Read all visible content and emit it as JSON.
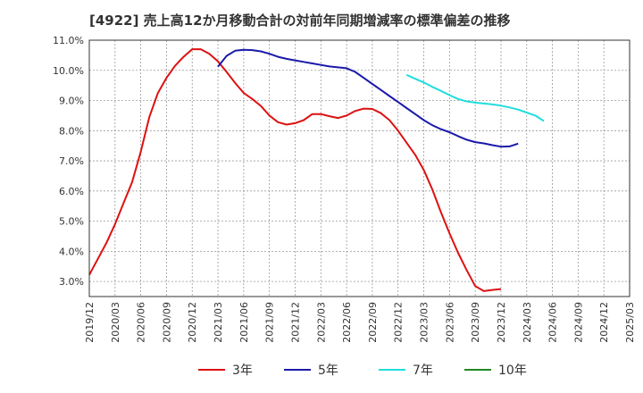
{
  "title": "[4922]  売上高12か月移動合計の対前年同期増減率の標準偏差の推移",
  "chart_data": {
    "type": "line",
    "title": "[4922]  売上高12か月移動合計の対前年同期増減率の標準偏差の推移",
    "xlabel": "",
    "ylabel": "",
    "x_ticks": [
      "2019/12",
      "2020/03",
      "2020/06",
      "2020/09",
      "2020/12",
      "2021/03",
      "2021/06",
      "2021/09",
      "2021/12",
      "2022/03",
      "2022/06",
      "2022/09",
      "2022/12",
      "2023/03",
      "2023/06",
      "2023/09",
      "2023/12",
      "2024/03",
      "2024/06",
      "2024/09",
      "2024/12",
      "2025/03"
    ],
    "y_ticks": [
      "3.0%",
      "4.0%",
      "5.0%",
      "6.0%",
      "7.0%",
      "8.0%",
      "9.0%",
      "10.0%",
      "11.0%"
    ],
    "ylim": [
      2.5,
      11.0
    ],
    "grid": true,
    "legend_position": "bottom",
    "series": [
      {
        "name": "3年",
        "color": "#dd1111",
        "start": "2019/12",
        "values": [
          3.22,
          3.75,
          4.28,
          4.9,
          5.6,
          6.3,
          7.3,
          8.45,
          9.25,
          9.75,
          10.15,
          10.45,
          10.7,
          10.7,
          10.55,
          10.3,
          9.95,
          9.58,
          9.25,
          9.05,
          8.82,
          8.5,
          8.28,
          8.2,
          8.25,
          8.35,
          8.55,
          8.55,
          8.48,
          8.42,
          8.5,
          8.65,
          8.73,
          8.72,
          8.58,
          8.35,
          8.0,
          7.6,
          7.2,
          6.7,
          6.05,
          5.3,
          4.6,
          3.95,
          3.38,
          2.85,
          2.68,
          2.72,
          2.75
        ]
      },
      {
        "name": "5年",
        "color": "#1a1aaa",
        "start": "2021/03",
        "values": [
          10.12,
          10.48,
          10.65,
          10.68,
          10.67,
          10.63,
          10.55,
          10.45,
          10.38,
          10.33,
          10.28,
          10.23,
          10.18,
          10.13,
          10.1,
          10.07,
          9.95,
          9.75,
          9.55,
          9.35,
          9.15,
          8.95,
          8.75,
          8.55,
          8.35,
          8.18,
          8.05,
          7.95,
          7.82,
          7.7,
          7.62,
          7.58,
          7.52,
          7.47,
          7.48,
          7.57
        ]
      },
      {
        "name": "7年",
        "color": "#22dddd",
        "start": "2023/01",
        "values": [
          9.85,
          9.72,
          9.6,
          9.45,
          9.32,
          9.18,
          9.05,
          8.97,
          8.93,
          8.9,
          8.87,
          8.83,
          8.77,
          8.7,
          8.6,
          8.5,
          8.32
        ]
      },
      {
        "name": "10年",
        "color": "#228822",
        "start": "2025/03",
        "values": []
      }
    ]
  }
}
